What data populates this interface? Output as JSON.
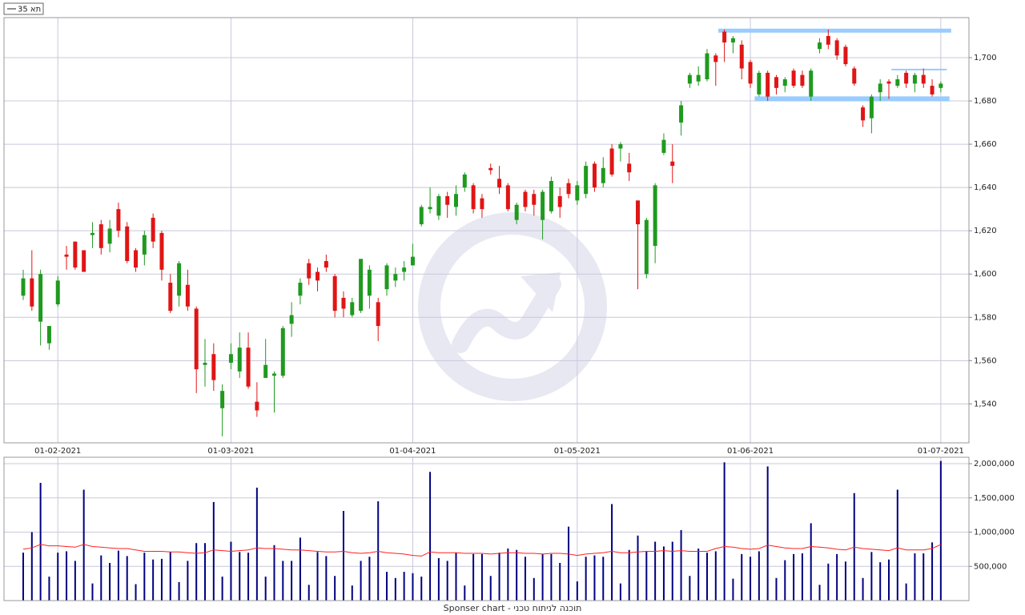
{
  "chart_data": [
    {
      "type": "candlestick",
      "legend": "תא 35",
      "categories": [
        null,
        null,
        null,
        null,
        "01-02-2021",
        null,
        null,
        null,
        null,
        null,
        null,
        null,
        null,
        null,
        null,
        null,
        null,
        null,
        null,
        null,
        null,
        null,
        null,
        null,
        "01-03-2021",
        null,
        null,
        null,
        null,
        null,
        null,
        null,
        null,
        null,
        null,
        null,
        null,
        null,
        null,
        null,
        null,
        null,
        null,
        null,
        null,
        "01-04-2021",
        null,
        null,
        null,
        null,
        null,
        null,
        null,
        null,
        null,
        null,
        null,
        null,
        null,
        null,
        null,
        null,
        null,
        null,
        "01-05-2021",
        null,
        null,
        null,
        null,
        null,
        null,
        null,
        null,
        null,
        null,
        null,
        null,
        null,
        null,
        null,
        null,
        null,
        null,
        null,
        "01-06-2021",
        null,
        null,
        null,
        null,
        null,
        null,
        null,
        null,
        null,
        null,
        null,
        null,
        null,
        null,
        null,
        null,
        null,
        null,
        null,
        null,
        null,
        "01-07-2021"
      ],
      "open": [
        1590,
        1598,
        1578,
        1568,
        1586,
        1609,
        1615,
        1611,
        1618,
        1623,
        1614,
        1630,
        1622,
        1611,
        1609,
        1626,
        1619,
        1596,
        1590,
        1595,
        1584,
        1558,
        1563,
        1538,
        1559,
        1555,
        1566,
        1541,
        1552,
        1553,
        1553,
        1577,
        1590,
        1605,
        1601,
        1606,
        1599,
        1589,
        1581,
        1583,
        1590,
        1587,
        1593,
        1597,
        1601,
        1604,
        1623,
        1630,
        1627,
        1636,
        1631,
        1640,
        1641,
        1635,
        1649,
        1644,
        1641,
        1625,
        1638,
        1637,
        1625,
        1629,
        1636,
        1642,
        1634,
        1637,
        1651,
        1642,
        1658,
        1658,
        1651,
        1634,
        1600,
        1613,
        1656,
        1652,
        1670,
        1688,
        1689,
        1690,
        1701,
        1712,
        1707,
        1706,
        1698,
        1683,
        1693,
        1691,
        1687,
        1694,
        1692,
        1682,
        1704,
        1710,
        1708,
        1705,
        1695,
        1677,
        1672,
        1684,
        1689,
        1687,
        1693,
        1688,
        1692,
        1687,
        1686
      ],
      "high": [
        1602,
        1611,
        1602,
        1576,
        1599,
        1613,
        1615,
        1611,
        1624,
        1625,
        1625,
        1633,
        1624,
        1612,
        1620,
        1628,
        1620,
        1600,
        1606,
        1602,
        1585,
        1570,
        1568,
        1549,
        1568,
        1573,
        1573,
        1550,
        1570,
        1555,
        1576,
        1587,
        1598,
        1607,
        1603,
        1609,
        1600,
        1592,
        1589,
        1607,
        1604,
        1589,
        1605,
        1603,
        1606,
        1614,
        1632,
        1640,
        1637,
        1638,
        1641,
        1647,
        1642,
        1637,
        1651,
        1650,
        1642,
        1633,
        1639,
        1639,
        1639,
        1645,
        1640,
        1644,
        1643,
        1652,
        1652,
        1654,
        1660,
        1661,
        1656,
        1634,
        1626,
        1642,
        1665,
        1660,
        1680,
        1693,
        1696,
        1704,
        1702,
        1713,
        1710,
        1708,
        1699,
        1694,
        1694,
        1692,
        1691,
        1695,
        1694,
        1695,
        1709,
        1713,
        1709,
        1706,
        1696,
        1678,
        1683,
        1690,
        1690,
        1692,
        1694,
        1693,
        1695,
        1690,
        1689
      ],
      "low": [
        1588,
        1583,
        1567,
        1565,
        1585,
        1602,
        1602,
        1601,
        1612,
        1609,
        1610,
        1617,
        1605,
        1601,
        1604,
        1612,
        1597,
        1582,
        1585,
        1583,
        1545,
        1548,
        1546,
        1525,
        1556,
        1552,
        1547,
        1534,
        1552,
        1536,
        1552,
        1571,
        1586,
        1595,
        1592,
        1601,
        1580,
        1580,
        1580,
        1582,
        1584,
        1569,
        1590,
        1594,
        1597,
        1604,
        1622,
        1628,
        1625,
        1626,
        1627,
        1638,
        1628,
        1626,
        1646,
        1637,
        1629,
        1623,
        1629,
        1627,
        1616,
        1628,
        1626,
        1635,
        1632,
        1635,
        1638,
        1640,
        1645,
        1652,
        1643,
        1593,
        1598,
        1605,
        1655,
        1642,
        1664,
        1686,
        1687,
        1689,
        1687,
        1698,
        1702,
        1690,
        1686,
        1682,
        1680,
        1683,
        1684,
        1686,
        1686,
        1680,
        1702,
        1704,
        1699,
        1696,
        1687,
        1668,
        1665,
        1680,
        1681,
        1686,
        1686,
        1684,
        1686,
        1682,
        1684
      ],
      "close": [
        1598,
        1585,
        1600,
        1576,
        1597,
        1608,
        1603,
        1601,
        1619,
        1612,
        1621,
        1620,
        1606,
        1603,
        1618,
        1615,
        1602,
        1583,
        1605,
        1585,
        1556,
        1559,
        1551,
        1546,
        1563,
        1566,
        1548,
        1537,
        1558,
        1554,
        1575,
        1581,
        1596,
        1598,
        1597,
        1603,
        1583,
        1584,
        1587,
        1607,
        1602,
        1576,
        1604,
        1600,
        1603,
        1608,
        1631,
        1631,
        1636,
        1632,
        1637,
        1646,
        1630,
        1630,
        1648,
        1640,
        1630,
        1632,
        1631,
        1632,
        1638,
        1643,
        1631,
        1637,
        1641,
        1650,
        1640,
        1649,
        1646,
        1660,
        1647,
        1623,
        1625,
        1641,
        1662,
        1650,
        1678,
        1692,
        1692,
        1702,
        1698,
        1707,
        1709,
        1695,
        1688,
        1693,
        1682,
        1686,
        1690,
        1687,
        1687,
        1694,
        1707,
        1706,
        1701,
        1697,
        1688,
        1671,
        1682,
        1688,
        1688,
        1690,
        1688,
        1692,
        1688,
        1683,
        1688
      ],
      "up_color": "#1f9a1f",
      "down_color": "#e01515",
      "ylim": [
        1522,
        1718.5
      ],
      "yticks": [
        {
          "value": 1540,
          "label": "1,540"
        },
        {
          "value": 1560,
          "label": "1,560"
        },
        {
          "value": 1580,
          "label": "1,580"
        },
        {
          "value": 1600,
          "label": "1,600"
        },
        {
          "value": 1620,
          "label": "1,620"
        },
        {
          "value": 1640,
          "label": "1,640"
        },
        {
          "value": 1660,
          "label": "1,660"
        },
        {
          "value": 1680,
          "label": "1,680"
        },
        {
          "value": 1700,
          "label": "1,700"
        }
      ],
      "grid": true,
      "levels": [
        {
          "value": 1712.5,
          "from": 80.3,
          "to": 107.2,
          "width": 5
        },
        {
          "value": 1681,
          "from": 84.5,
          "to": 107
        },
        {
          "value": 1694.5,
          "from": 100.3,
          "to": 106.7,
          "width": 2
        }
      ],
      "level_color": "#99ccff"
    },
    {
      "type": "bar",
      "values": [
        700000,
        1000000,
        1720000,
        350000,
        700000,
        720000,
        580000,
        1620000,
        250000,
        660000,
        550000,
        730000,
        650000,
        240000,
        700000,
        600000,
        610000,
        710000,
        270000,
        580000,
        840000,
        840000,
        1440000,
        350000,
        860000,
        710000,
        700000,
        1650000,
        350000,
        810000,
        580000,
        580000,
        920000,
        230000,
        710000,
        650000,
        360000,
        1310000,
        220000,
        580000,
        640000,
        1450000,
        420000,
        330000,
        420000,
        400000,
        350000,
        1880000,
        620000,
        580000,
        700000,
        220000,
        680000,
        680000,
        360000,
        700000,
        760000,
        740000,
        640000,
        330000,
        680000,
        680000,
        550000,
        1080000,
        280000,
        640000,
        660000,
        640000,
        1410000,
        250000,
        740000,
        950000,
        720000,
        860000,
        790000,
        860000,
        1030000,
        360000,
        760000,
        700000,
        720000,
        2020000,
        320000,
        680000,
        640000,
        720000,
        1960000,
        330000,
        590000,
        680000,
        690000,
        1130000,
        230000,
        540000,
        680000,
        570000,
        1570000,
        330000,
        710000,
        560000,
        600000,
        1620000,
        250000,
        690000,
        690000,
        850000,
        2040000
      ],
      "color": "#000080",
      "average": [
        750000,
        770000,
        820000,
        800000,
        800000,
        790000,
        780000,
        820000,
        790000,
        780000,
        770000,
        760000,
        760000,
        740000,
        720000,
        720000,
        720000,
        710000,
        710000,
        700000,
        690000,
        700000,
        740000,
        730000,
        720000,
        730000,
        740000,
        770000,
        760000,
        760000,
        750000,
        740000,
        740000,
        730000,
        720000,
        710000,
        710000,
        720000,
        700000,
        690000,
        700000,
        720000,
        700000,
        690000,
        680000,
        660000,
        650000,
        710000,
        700000,
        700000,
        700000,
        690000,
        690000,
        690000,
        680000,
        690000,
        700000,
        700000,
        690000,
        690000,
        680000,
        690000,
        690000,
        680000,
        660000,
        680000,
        690000,
        700000,
        720000,
        700000,
        700000,
        710000,
        720000,
        720000,
        730000,
        720000,
        730000,
        720000,
        720000,
        720000,
        760000,
        790000,
        780000,
        760000,
        750000,
        760000,
        810000,
        790000,
        770000,
        760000,
        760000,
        790000,
        780000,
        770000,
        750000,
        740000,
        780000,
        760000,
        750000,
        740000,
        730000,
        770000,
        740000,
        740000,
        740000,
        760000,
        820000
      ],
      "average_color": "#ff2020",
      "ylim": [
        0,
        2094000
      ],
      "yticks": [
        {
          "value": 500000,
          "label": "500,000"
        },
        {
          "value": 1000000,
          "label": "1,000,000"
        },
        {
          "value": 1500000,
          "label": "1,500,000"
        },
        {
          "value": 2000000,
          "label": "2,000,000"
        }
      ],
      "grid": true,
      "footer": "Sponser chart - תוכנה לניתוח טכני"
    }
  ]
}
